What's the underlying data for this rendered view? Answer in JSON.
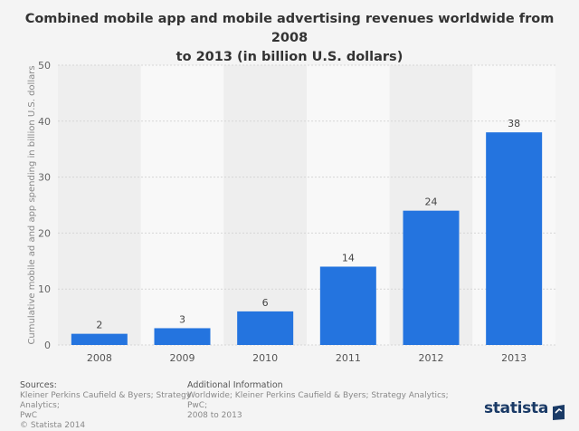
{
  "title": {
    "line1": "Combined mobile app and mobile advertising revenues worldwide from 2008",
    "line2": "to 2013 (in billion U.S. dollars)"
  },
  "chart_data": {
    "type": "bar",
    "categories": [
      "2008",
      "2009",
      "2010",
      "2011",
      "2012",
      "2013"
    ],
    "values": [
      2,
      3,
      6,
      14,
      24,
      38
    ],
    "ylabel": "Cumulative mobile ad and app spending in billion U.S. dollars",
    "ylim": [
      0,
      50
    ],
    "yticks": [
      0,
      10,
      20,
      30,
      40,
      50
    ],
    "grid": true,
    "bar_color": "#2474df"
  },
  "footer": {
    "sources_heading": "Sources:",
    "sources_lines": [
      "Kleiner Perkins Caufield & Byers; Strategy Analytics;",
      "PwC",
      "© Statista 2014"
    ],
    "additional_heading": "Additional Information",
    "additional_lines": [
      "Worldwide; Kleiner Perkins Caufield & Byers; Strategy Analytics; PwC;",
      "2008 to 2013"
    ],
    "brand": "statista"
  }
}
